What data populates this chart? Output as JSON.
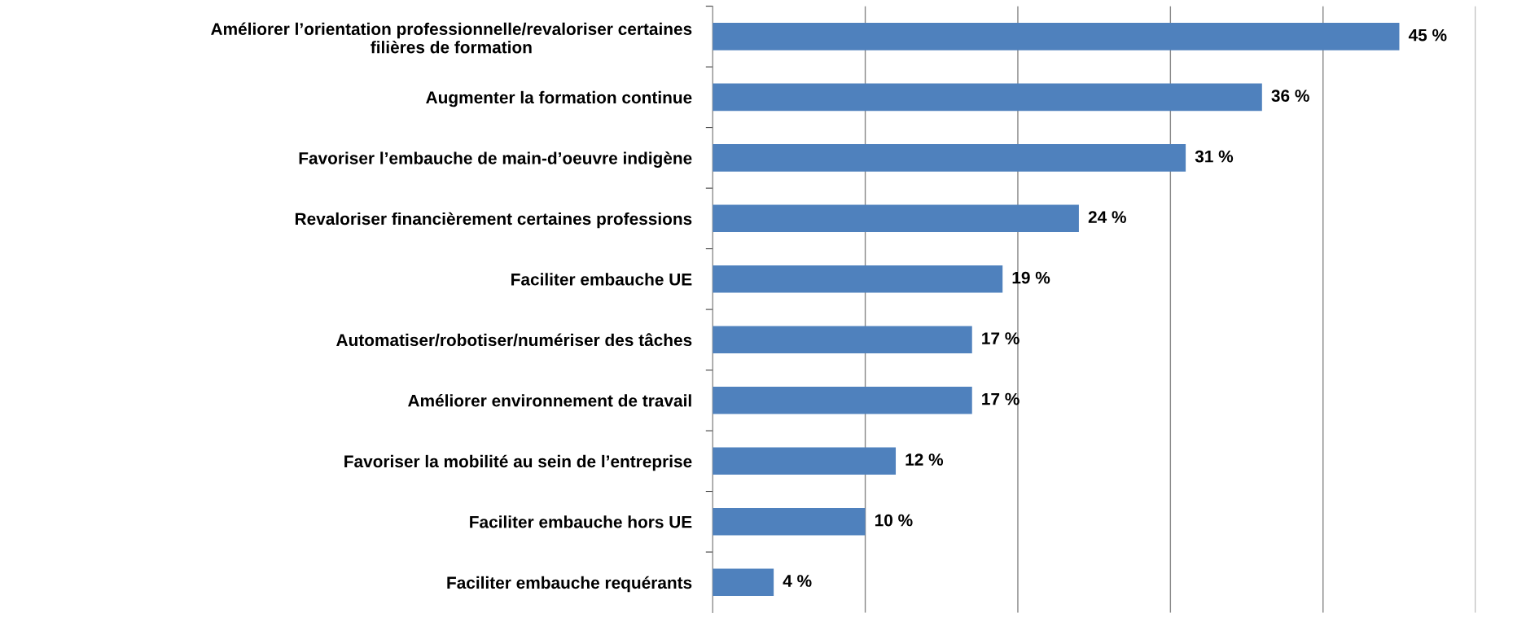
{
  "chart_data": {
    "type": "bar",
    "orientation": "horizontal",
    "categories": [
      "Améliorer l’orientation professionnelle/revaloriser certaines\nfilières de formation",
      "Augmenter la formation continue",
      "Favoriser l’embauche de main-d’oeuvre indigène",
      "Revaloriser financièrement certaines professions",
      "Faciliter embauche UE",
      "Automatiser/robotiser/numériser des tâches",
      "Améliorer environnement de travail",
      "Favoriser la mobilité au sein de l’entreprise",
      "Faciliter embauche hors UE",
      "Faciliter embauche requérants"
    ],
    "values": [
      45,
      36,
      31,
      24,
      19,
      17,
      17,
      12,
      10,
      4
    ],
    "value_labels": [
      "45 %",
      "36 %",
      "31 %",
      "24 %",
      "19 %",
      "17 %",
      "17 %",
      "12 %",
      "10 %",
      "4 %"
    ],
    "color": "#4f81bd",
    "xlim": [
      0,
      50
    ],
    "xticks": [
      {
        "value": 0,
        "label": null
      },
      {
        "value": 10,
        "label": null
      },
      {
        "value": 20,
        "label": null
      },
      {
        "value": 30,
        "label": null
      },
      {
        "value": 40,
        "label": null
      },
      {
        "value": 50,
        "label": null
      }
    ],
    "grid": "x",
    "tick_labels": "y"
  }
}
